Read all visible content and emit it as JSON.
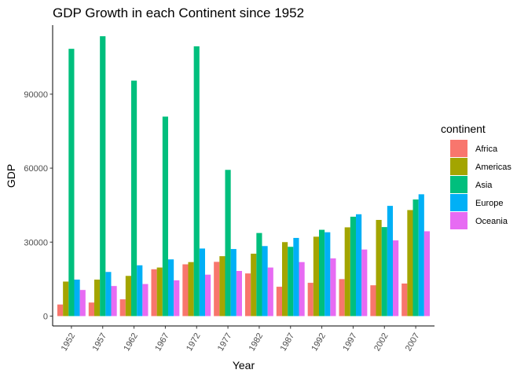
{
  "chart_data": {
    "type": "bar",
    "title": "GDP Growth in each Continent since 1952",
    "xlabel": "Year",
    "ylabel": "GDP",
    "categories": [
      "1952",
      "1957",
      "1962",
      "1967",
      "1972",
      "1977",
      "1982",
      "1987",
      "1992",
      "1997",
      "2002",
      "2007"
    ],
    "yticks": [
      0,
      30000,
      60000,
      90000
    ],
    "ylim": [
      -4000,
      118000
    ],
    "grid": false,
    "legend": {
      "title": "continent",
      "position": "right"
    },
    "series": [
      {
        "name": "Africa",
        "color": "#F8766D",
        "values": [
          4700,
          5500,
          6800,
          19000,
          21000,
          22000,
          17300,
          11900,
          13500,
          15000,
          12500,
          13200
        ]
      },
      {
        "name": "Americas",
        "color": "#A3A500",
        "values": [
          14000,
          14800,
          16300,
          19700,
          21900,
          24300,
          25300,
          30000,
          32200,
          36000,
          39000,
          43000
        ]
      },
      {
        "name": "Asia",
        "color": "#00BF7D",
        "values": [
          108400,
          113500,
          95500,
          80900,
          109400,
          59300,
          33700,
          28100,
          35000,
          40300,
          36100,
          47300
        ]
      },
      {
        "name": "Europe",
        "color": "#00B0F6",
        "values": [
          14800,
          17900,
          20600,
          23000,
          27400,
          27200,
          28400,
          31700,
          34000,
          41300,
          44700,
          49400
        ]
      },
      {
        "name": "Oceania",
        "color": "#E76BF3",
        "values": [
          10600,
          12200,
          13000,
          14500,
          16800,
          18300,
          19700,
          21900,
          23400,
          27000,
          30700,
          34400
        ]
      }
    ]
  }
}
